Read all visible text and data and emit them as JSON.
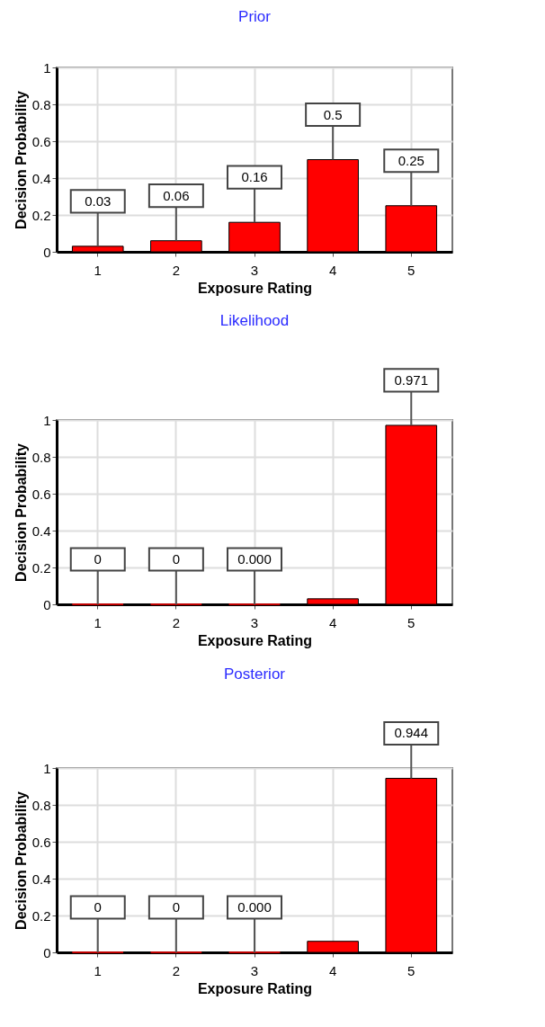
{
  "chart_data": [
    {
      "type": "bar",
      "title": "Prior",
      "xlabel": "Exposure Rating",
      "ylabel": "Decision Probability",
      "categories": [
        "1",
        "2",
        "3",
        "4",
        "5"
      ],
      "values": [
        0.03,
        0.06,
        0.16,
        0.5,
        0.25
      ],
      "color": "#ff0000",
      "data_labels": true,
      "ylim": [
        0,
        1
      ],
      "yticks": [
        0,
        0.2,
        0.4,
        0.6,
        0.8,
        1
      ],
      "grid": true
    },
    {
      "type": "bar",
      "title": "Likelihood",
      "xlabel": "Exposure Rating",
      "ylabel": "Decision Probability",
      "categories": [
        "1",
        "2",
        "3",
        "4",
        "5"
      ],
      "values": [
        0,
        0,
        0,
        0.03,
        0.971
      ],
      "value_labels": [
        "0",
        "0",
        "0.000",
        null,
        "0.971"
      ],
      "color": "#ff0000",
      "ylim": [
        0,
        1
      ],
      "yticks": [
        0,
        0.2,
        0.4,
        0.6,
        0.8,
        1
      ],
      "grid": true
    },
    {
      "type": "bar",
      "title": "Posterior",
      "xlabel": "Exposure Rating",
      "ylabel": "Decision Probability",
      "categories": [
        "1",
        "2",
        "3",
        "4",
        "5"
      ],
      "values": [
        0,
        0,
        0,
        0.06,
        0.944
      ],
      "value_labels": [
        "0",
        "0",
        "0.000",
        null,
        "0.944"
      ],
      "color": "#ff0000",
      "ylim": [
        0,
        1
      ],
      "yticks": [
        0,
        0.2,
        0.4,
        0.6,
        0.8,
        1
      ],
      "grid": true
    }
  ]
}
